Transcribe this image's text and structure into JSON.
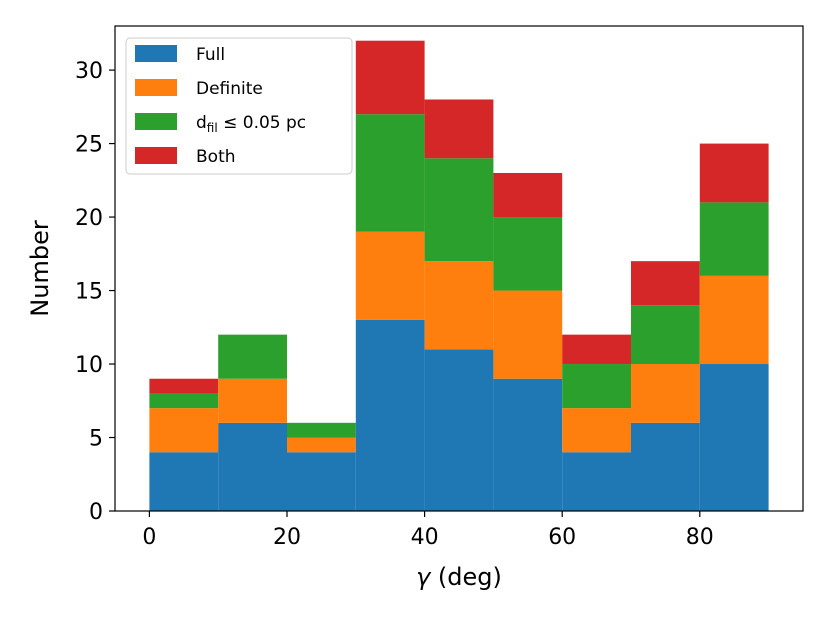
{
  "chart_data": {
    "type": "bar",
    "stacked": true,
    "bin_edges": [
      0,
      10,
      20,
      30,
      40,
      50,
      60,
      70,
      80,
      90
    ],
    "series": [
      {
        "name": "Full",
        "color": "#1f77b4",
        "values": [
          4,
          6,
          4,
          13,
          11,
          9,
          4,
          6,
          10
        ]
      },
      {
        "name": "Definite",
        "color": "#ff7f0e",
        "values": [
          3,
          3,
          1,
          6,
          6,
          6,
          3,
          4,
          6
        ]
      },
      {
        "name": "dfil ≤ 0.05 pc",
        "color": "#2ca02c",
        "values": [
          1,
          3,
          1,
          8,
          7,
          5,
          3,
          4,
          5
        ]
      },
      {
        "name": "Both",
        "color": "#d62728",
        "values": [
          1,
          0,
          0,
          5,
          4,
          3,
          2,
          3,
          4
        ]
      }
    ],
    "legend": {
      "position": "top-left",
      "entries": [
        {
          "main": "Full",
          "sub": "",
          "rest": ""
        },
        {
          "main": "Definite",
          "sub": "",
          "rest": ""
        },
        {
          "main": "d",
          "sub": "fil",
          "rest": " ≤  0.05 pc"
        },
        {
          "main": "Both",
          "sub": "",
          "rest": ""
        }
      ]
    },
    "xlabel_symbol": "γ",
    "xlabel_rest": " (deg)",
    "ylabel": "Number",
    "xlim": [
      -5,
      95
    ],
    "ylim": [
      0,
      33
    ],
    "xticks": [
      0,
      20,
      40,
      60,
      80
    ],
    "yticks": [
      0,
      5,
      10,
      15,
      20,
      25,
      30
    ]
  }
}
